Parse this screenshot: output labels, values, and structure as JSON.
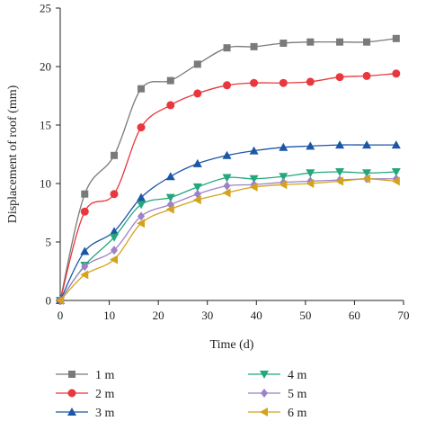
{
  "chart_data": {
    "type": "line",
    "xlabel": "Time (d)",
    "ylabel": "Displacement of roof (mm)",
    "xlim": [
      0,
      70
    ],
    "ylim": [
      0,
      25
    ],
    "xticks": [
      "0",
      "10",
      "20",
      "30",
      "40",
      "50",
      "60",
      "70"
    ],
    "yticks": [
      "0",
      "5",
      "10",
      "15",
      "20",
      "25"
    ],
    "grid": false,
    "legend_position": "bottom",
    "x": [
      0,
      5,
      11,
      16.5,
      22.5,
      28,
      34,
      39.5,
      45.5,
      51,
      57,
      62.5,
      68.5
    ],
    "series": [
      {
        "name": "1 m",
        "color": "#7a7a7a",
        "marker": "square",
        "values": [
          0,
          9.1,
          12.4,
          18.1,
          18.8,
          20.2,
          21.6,
          21.7,
          22.0,
          22.1,
          22.1,
          22.1,
          22.4
        ]
      },
      {
        "name": "2 m",
        "color": "#e8383d",
        "marker": "circle",
        "values": [
          0,
          7.6,
          9.1,
          14.8,
          16.7,
          17.7,
          18.4,
          18.6,
          18.6,
          18.7,
          19.1,
          19.2,
          19.4
        ]
      },
      {
        "name": "3 m",
        "color": "#1c56a6",
        "marker": "triangle-up",
        "values": [
          0,
          4.2,
          5.9,
          8.8,
          10.6,
          11.7,
          12.4,
          12.8,
          13.1,
          13.2,
          13.3,
          13.3,
          13.3
        ]
      },
      {
        "name": "4 m",
        "color": "#23a77c",
        "marker": "triangle-down",
        "values": [
          0,
          3.0,
          5.4,
          8.2,
          8.8,
          9.7,
          10.5,
          10.4,
          10.6,
          10.9,
          11.0,
          10.9,
          11.0
        ]
      },
      {
        "name": "5 m",
        "color": "#9c82c8",
        "marker": "diamond",
        "values": [
          0,
          2.9,
          4.3,
          7.2,
          8.2,
          9.1,
          9.8,
          9.9,
          10.1,
          10.2,
          10.3,
          10.4,
          10.4
        ]
      },
      {
        "name": "6 m",
        "color": "#d4a21d",
        "marker": "triangle-left",
        "values": [
          0,
          2.2,
          3.5,
          6.6,
          7.8,
          8.6,
          9.2,
          9.7,
          9.9,
          10.0,
          10.2,
          10.4,
          10.2
        ]
      }
    ]
  }
}
